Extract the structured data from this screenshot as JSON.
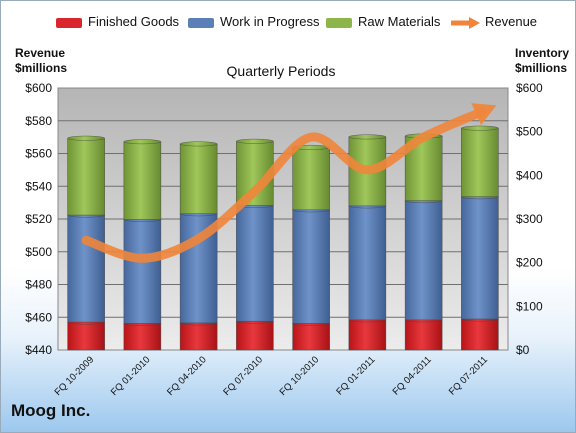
{
  "chart_data": {
    "type": "bar",
    "subtitle": "Quarterly Periods",
    "company": "Moog Inc.",
    "left_axis_title": [
      "Revenue",
      "$millions"
    ],
    "right_axis_title": [
      "Inventory",
      "$millions"
    ],
    "categories": [
      "FQ 10-2009",
      "FQ 01-2010",
      "FQ 04-2010",
      "FQ 07-2010",
      "FQ 10-2010",
      "FQ 01-2011",
      "FQ 04-2011",
      "FQ 07-2011"
    ],
    "stacked": true,
    "series": [
      {
        "name": "Finished Goods",
        "axis": "right",
        "color": "#d9262c",
        "values": [
          64,
          61,
          62,
          66,
          61,
          69,
          69,
          71
        ]
      },
      {
        "name": "Work in Progress",
        "axis": "right",
        "color": "#5b80b8",
        "values": [
          245,
          238,
          250,
          265,
          260,
          261,
          273,
          280
        ]
      },
      {
        "name": "Raw Materials",
        "axis": "right",
        "color": "#8db549",
        "values": [
          176,
          178,
          160,
          147,
          143,
          158,
          148,
          157
        ]
      },
      {
        "name": "Revenue",
        "axis": "left",
        "type": "line",
        "color": "#f0853a",
        "values": [
          507,
          496,
          508,
          537,
          570,
          550,
          570,
          585
        ]
      }
    ],
    "left_axis": {
      "min": 440,
      "max": 600,
      "step": 20,
      "ticks": [
        "$440",
        "$460",
        "$480",
        "$500",
        "$520",
        "$540",
        "$560",
        "$580",
        "$600"
      ]
    },
    "right_axis": {
      "min": 0,
      "max": 600,
      "step": 100,
      "ticks": [
        "$0",
        "$100",
        "$200",
        "$300",
        "$400",
        "$500",
        "$600"
      ]
    },
    "legend_position": "top",
    "grid": true
  }
}
